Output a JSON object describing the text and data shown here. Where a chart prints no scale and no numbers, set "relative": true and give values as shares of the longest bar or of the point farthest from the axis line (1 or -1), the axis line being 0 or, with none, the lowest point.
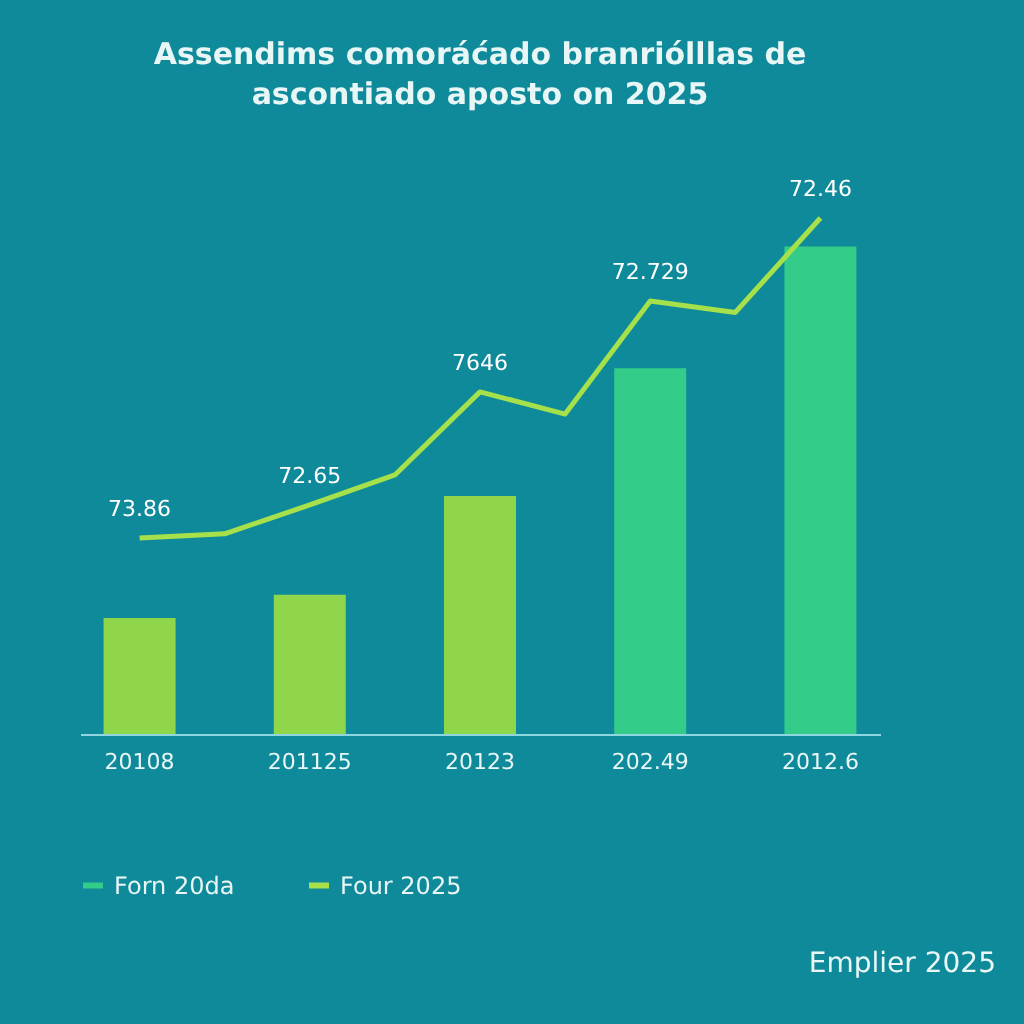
{
  "chart_data": {
    "type": "bar",
    "title": "Assendims comoráćado branriólllas de ascontiado aposto on 2025",
    "categories": [
      "20108",
      null,
      "201125",
      null,
      "20123",
      null,
      "202.49",
      null,
      "2012.6"
    ],
    "relative": true,
    "series": [
      {
        "name": "Forn 20da",
        "color": "#33cc88",
        "colors": [
          "#8fd64a",
          null,
          "#8fd64a",
          null,
          "#8fd64a",
          null,
          "#33cc88",
          null,
          "#33cc88"
        ],
        "values": [
          0.225,
          null,
          0.27,
          null,
          0.461,
          null,
          0.709,
          null,
          0.945
        ]
      },
      {
        "name": "Four 2025",
        "type": "line",
        "color": "#a6e04a",
        "values": [
          0.38,
          0.388,
          0.444,
          0.502,
          0.663,
          0.62,
          0.839,
          0.817,
          1
        ]
      }
    ],
    "legend": "bottom left",
    "annotations": [
      {
        "text": "73.86",
        "x": "20108",
        "y": 0.38
      },
      {
        "text": "72.65",
        "x": "201125",
        "y": 0.444
      },
      {
        "text": "7646",
        "x": "20123",
        "y": 0.663
      },
      {
        "text": "72.729",
        "x": "202.49",
        "y": 0.839
      },
      {
        "text": "72.46",
        "x": "2012.6",
        "y": 1
      },
      "Emplier 2025"
    ]
  }
}
